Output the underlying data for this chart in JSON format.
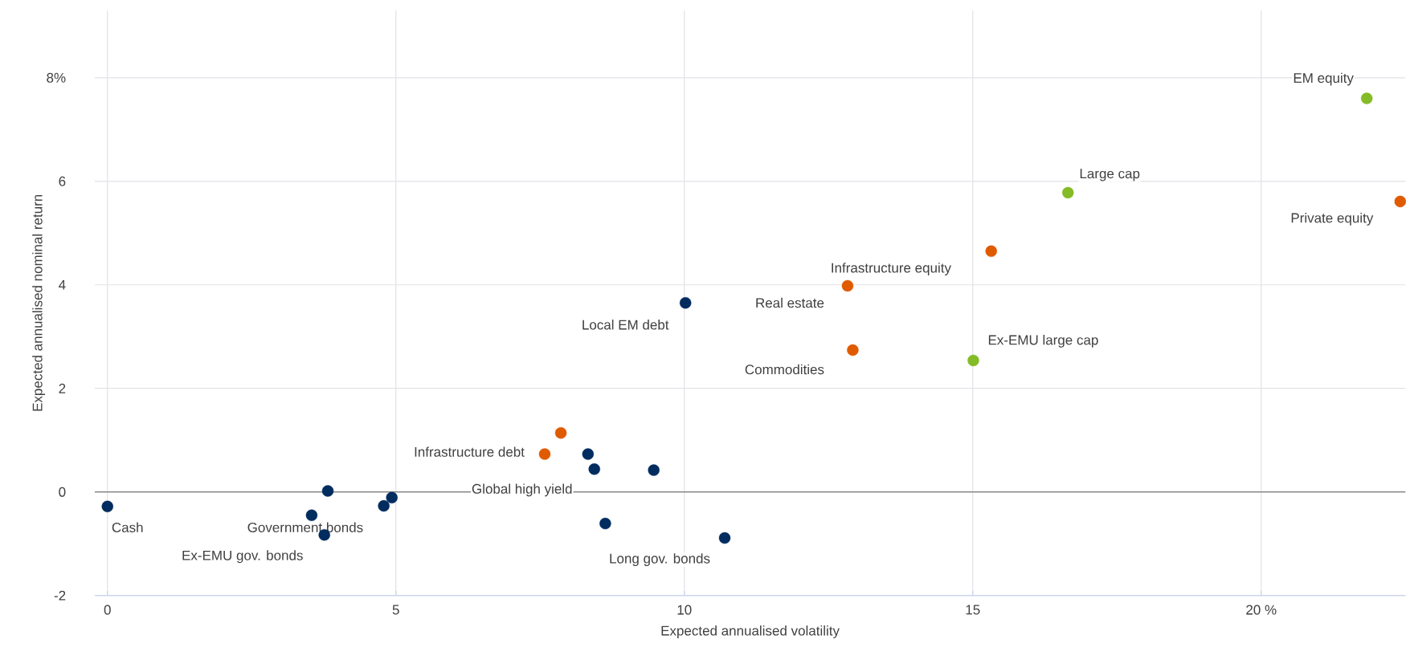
{
  "chart_data": {
    "type": "scatter",
    "xlabel": "Expected annualised volatility",
    "ylabel": "Expected annualised nominal return",
    "xlim": [
      -0.22,
      22.5
    ],
    "ylim": [
      -2,
      9.3
    ],
    "xticks": [
      0,
      5,
      10,
      15,
      {
        "value": 20,
        "label": "20 %"
      }
    ],
    "yticks": [
      -2,
      0,
      2,
      4,
      6,
      {
        "value": 8,
        "label": "8%"
      }
    ],
    "grid": true,
    "marker": "circle",
    "ref_lines": [
      {
        "axis": "y",
        "value": 0,
        "color": "#808080"
      }
    ],
    "series": [
      {
        "color": "#002c5f",
        "x": [
          0,
          3.54,
          3.82,
          3.76,
          4.79,
          4.93,
          10.02,
          8.33,
          8.44,
          9.47,
          8.63,
          10.7
        ],
        "values": [
          -0.28,
          -0.45,
          0.02,
          -0.83,
          -0.27,
          -0.11,
          3.65,
          0.73,
          0.44,
          0.42,
          -0.61,
          -0.89
        ]
      },
      {
        "color": "#e05a00",
        "x": [
          7.86,
          7.58,
          15.32,
          12.83,
          12.92,
          22.41
        ],
        "values": [
          1.14,
          0.73,
          4.65,
          3.98,
          2.74,
          5.61
        ]
      },
      {
        "color": "#84bb26",
        "x": [
          16.65,
          15.01,
          21.83
        ],
        "values": [
          5.78,
          2.54,
          7.6
        ]
      }
    ],
    "annotations": [
      {
        "text": "Cash",
        "x": 0,
        "y": -0.28
      },
      {
        "text": "Government bonds",
        "x": 3.54,
        "y": -0.45
      },
      {
        "text": "Ex-EMU gov. bonds",
        "x": 3.76,
        "y": -0.83
      },
      {
        "text": "Global high yield",
        "x": 8.44,
        "y": 0.44
      },
      {
        "text": "Infrastructure debt",
        "x": 7.58,
        "y": 0.73
      },
      {
        "text": "Local EM debt",
        "x": 10.02,
        "y": 3.65
      },
      {
        "text": "Long gov. bonds",
        "x": 10.7,
        "y": -0.89
      },
      {
        "text": "Real estate",
        "x": 12.83,
        "y": 3.98
      },
      {
        "text": "Commodities",
        "x": 12.92,
        "y": 2.74
      },
      {
        "text": "Infrastructure equity",
        "x": 12.83,
        "y": 3.98
      },
      {
        "text": "Ex-EMU large cap",
        "x": 15.01,
        "y": 2.54
      },
      {
        "text": "Large cap",
        "x": 16.65,
        "y": 5.78
      },
      {
        "text": "Private equity",
        "x": 22.41,
        "y": 5.61
      },
      {
        "text": "EM equity",
        "x": 21.83,
        "y": 7.6
      }
    ]
  }
}
